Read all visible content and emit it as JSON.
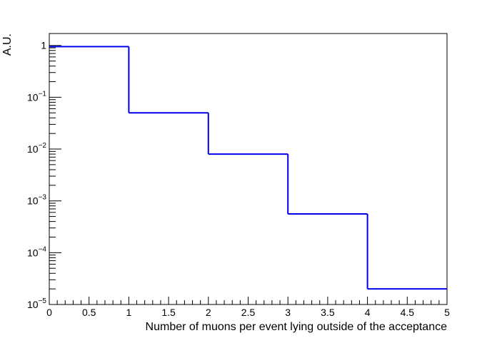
{
  "chart_data": {
    "type": "histogram-step",
    "xlabel": "Number of muons per event lying outside of the acceptance",
    "ylabel": "A.U.",
    "xlim": [
      0,
      5
    ],
    "ylim": [
      1e-05,
      1.7
    ],
    "yscale": "log",
    "grid": false,
    "bins": [
      {
        "xlow": 0,
        "xhigh": 1,
        "value": 0.95
      },
      {
        "xlow": 1,
        "xhigh": 2,
        "value": 0.05
      },
      {
        "xlow": 2,
        "xhigh": 3,
        "value": 0.008
      },
      {
        "xlow": 3,
        "xhigh": 4,
        "value": 0.00056
      },
      {
        "xlow": 4,
        "xhigh": 5,
        "value": 2e-05
      }
    ],
    "x_tick_labels": [
      {
        "value": 0,
        "label": "0"
      },
      {
        "value": 0.5,
        "label": "0.5"
      },
      {
        "value": 1,
        "label": "1"
      },
      {
        "value": 1.5,
        "label": "1.5"
      },
      {
        "value": 2,
        "label": "2"
      },
      {
        "value": 2.5,
        "label": "2.5"
      },
      {
        "value": 3,
        "label": "3"
      },
      {
        "value": 3.5,
        "label": "3.5"
      },
      {
        "value": 4,
        "label": "4"
      },
      {
        "value": 4.5,
        "label": "4.5"
      },
      {
        "value": 5,
        "label": "5"
      }
    ],
    "y_tick_labels": [
      {
        "value": 1,
        "base": "1",
        "exp": ""
      },
      {
        "value": 0.1,
        "base": "10",
        "exp": "−1"
      },
      {
        "value": 0.01,
        "base": "10",
        "exp": "−2"
      },
      {
        "value": 0.001,
        "base": "10",
        "exp": "−3"
      },
      {
        "value": 0.0001,
        "base": "10",
        "exp": "−4"
      },
      {
        "value": 1e-05,
        "base": "10",
        "exp": "−5"
      }
    ],
    "colors": {
      "line": "#0000ee",
      "axis": "#000000"
    }
  }
}
